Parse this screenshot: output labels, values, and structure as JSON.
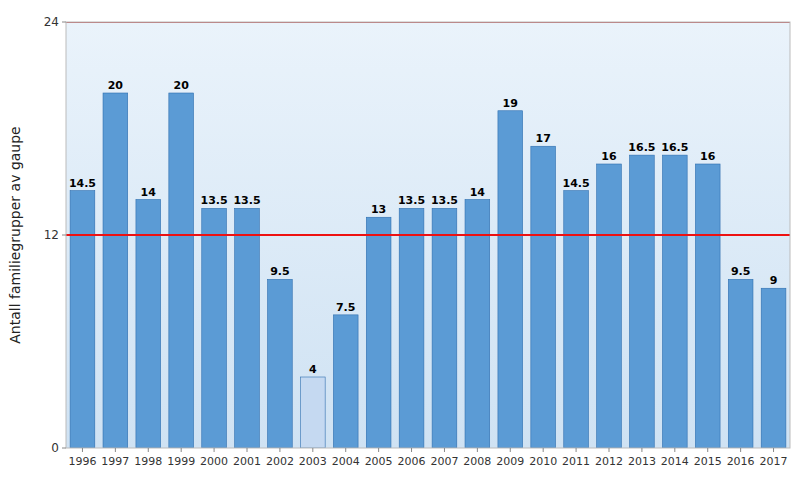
{
  "chart_data": {
    "type": "bar",
    "y_label": "Antall familiegrupper av gaupe",
    "categories": [
      "1996",
      "1997",
      "1998",
      "1999",
      "2000",
      "2001",
      "2002",
      "2003",
      "2004",
      "2005",
      "2006",
      "2007",
      "2008",
      "2009",
      "2010",
      "2011",
      "2012",
      "2013",
      "2014",
      "2015",
      "2016",
      "2017"
    ],
    "values": [
      14.5,
      20,
      14,
      20,
      13.5,
      13.5,
      9.5,
      4,
      7.5,
      13,
      13.5,
      13.5,
      14,
      19,
      17,
      14.5,
      16,
      16.5,
      16.5,
      16,
      9.5,
      9
    ],
    "colors": [
      "#5B9BD5",
      "#5B9BD5",
      "#5B9BD5",
      "#5B9BD5",
      "#5B9BD5",
      "#5B9BD5",
      "#5B9BD5",
      "#C5D9F1",
      "#5B9BD5",
      "#5B9BD5",
      "#5B9BD5",
      "#5B9BD5",
      "#5B9BD5",
      "#5B9BD5",
      "#5B9BD5",
      "#5B9BD5",
      "#5B9BD5",
      "#5B9BD5",
      "#5B9BD5",
      "#5B9BD5",
      "#5B9BD5",
      "#5B9BD5"
    ],
    "hlines": [
      {
        "value": 12,
        "color": "#EE1111"
      },
      {
        "value": 24,
        "color": "#AA2222"
      }
    ],
    "ylim": [
      0,
      24
    ],
    "yticks": [
      0,
      12,
      24
    ],
    "data_labels": true,
    "grid": false
  }
}
